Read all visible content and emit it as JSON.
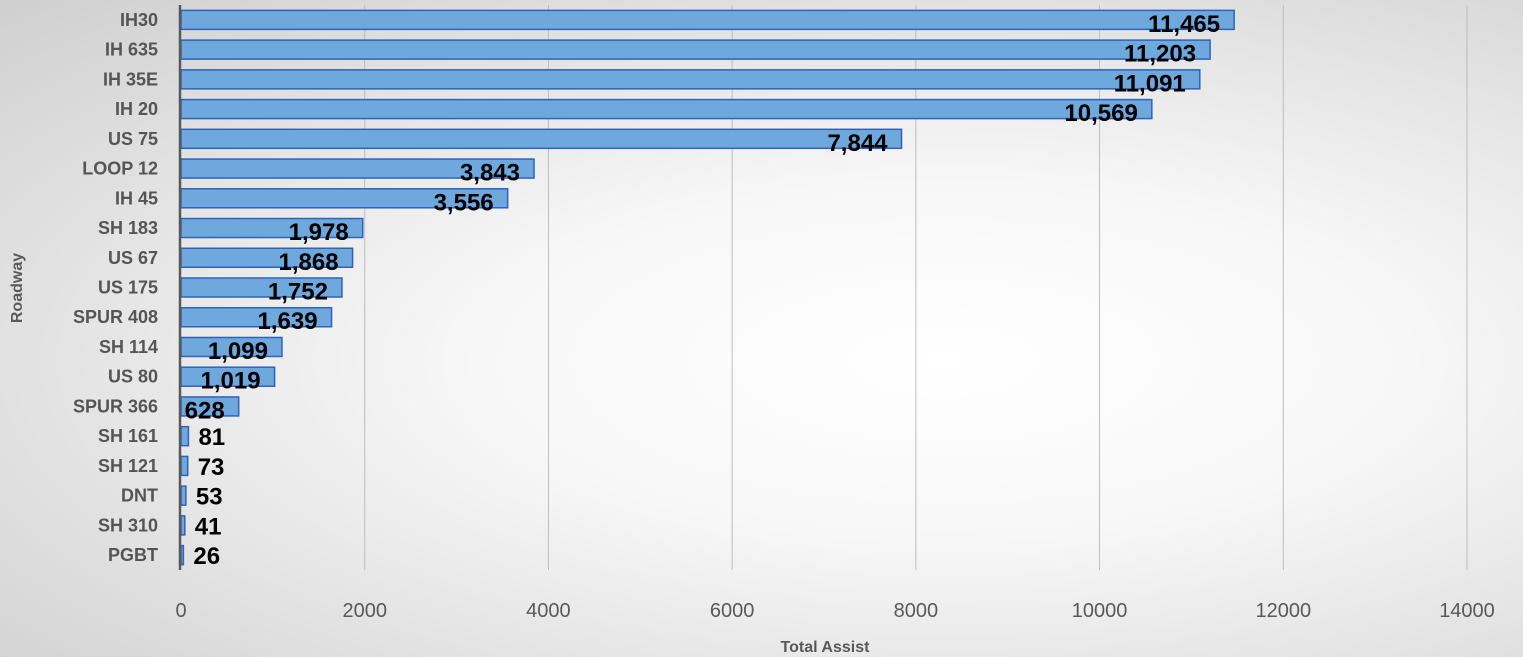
{
  "chart_data": {
    "type": "bar",
    "orientation": "horizontal",
    "categories": [
      "IH30",
      "IH 635",
      "IH 35E",
      "IH 20",
      "US 75",
      "LOOP 12",
      "IH 45",
      "SH 183",
      "US 67",
      "US 175",
      "SPUR 408",
      "SH 114",
      "US 80",
      "SPUR 366",
      "SH 161",
      "SH 121",
      "DNT",
      "SH 310",
      "PGBT"
    ],
    "values": [
      11465,
      11203,
      11091,
      10569,
      7844,
      3843,
      3556,
      1978,
      1868,
      1752,
      1639,
      1099,
      1019,
      628,
      81,
      73,
      53,
      41,
      26
    ],
    "value_labels": [
      "11,465",
      "11,203",
      "11,091",
      "10,569",
      "7,844",
      "3,843",
      "3,556",
      "1,978",
      "1,868",
      "1,752",
      "1,639",
      "1,099",
      "1,019",
      "628",
      "81",
      "73",
      "53",
      "41",
      "26"
    ],
    "xlabel": "Total Assist",
    "ylabel": "Roadway",
    "xlim": [
      0,
      14000
    ],
    "x_ticks": [
      "0",
      "2000",
      "4000",
      "6000",
      "8000",
      "10000",
      "12000",
      "14000"
    ],
    "grid": "vertical",
    "legend": "none",
    "colors": {
      "bar_fill": "#6fa8dc",
      "bar_stroke": "#2f62b8",
      "axis": "#595959"
    }
  }
}
